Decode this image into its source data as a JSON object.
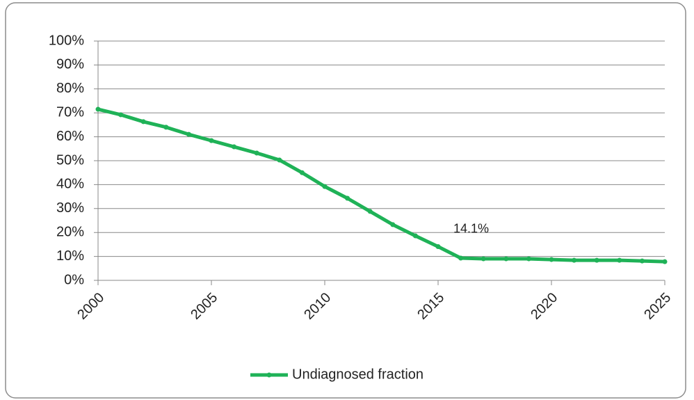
{
  "chart_data": {
    "type": "line",
    "x": [
      2000,
      2001,
      2002,
      2003,
      2004,
      2005,
      2006,
      2007,
      2008,
      2009,
      2010,
      2011,
      2012,
      2013,
      2014,
      2015,
      2016,
      2017,
      2018,
      2019,
      2020,
      2021,
      2022,
      2023,
      2024,
      2025
    ],
    "series": [
      {
        "name": "Undiagnosed fraction",
        "color": "#1fb257",
        "values": [
          71.5,
          69.2,
          66.3,
          64,
          61,
          58.4,
          55.8,
          53.2,
          50.3,
          45,
          39.2,
          34.3,
          28.8,
          23.3,
          18.6,
          14.1,
          9.3,
          9.0,
          9.0,
          9.0,
          8.7,
          8.4,
          8.4,
          8.4,
          8.1,
          7.8
        ],
        "value_labels": [
          null,
          null,
          null,
          null,
          null,
          null,
          null,
          null,
          null,
          null,
          null,
          null,
          null,
          null,
          null,
          "14.1%",
          null,
          null,
          null,
          null,
          null,
          null,
          null,
          null,
          null,
          null
        ]
      }
    ],
    "xlim": [
      2000,
      2025
    ],
    "xticks": [
      2000,
      2005,
      2010,
      2015,
      2020,
      2025
    ],
    "ylim": [
      0,
      100
    ],
    "yticks": [
      {
        "value": 0,
        "label": "0%"
      },
      {
        "value": 10,
        "label": "10%"
      },
      {
        "value": 20,
        "label": "20%"
      },
      {
        "value": 30,
        "label": "30%"
      },
      {
        "value": 40,
        "label": "40%"
      },
      {
        "value": 50,
        "label": "50%"
      },
      {
        "value": 60,
        "label": "60%"
      },
      {
        "value": 70,
        "label": "70%"
      },
      {
        "value": 80,
        "label": "80%"
      },
      {
        "value": 90,
        "label": "90%"
      },
      {
        "value": 100,
        "label": "100%"
      }
    ],
    "grid": true,
    "legend": "bottom"
  }
}
